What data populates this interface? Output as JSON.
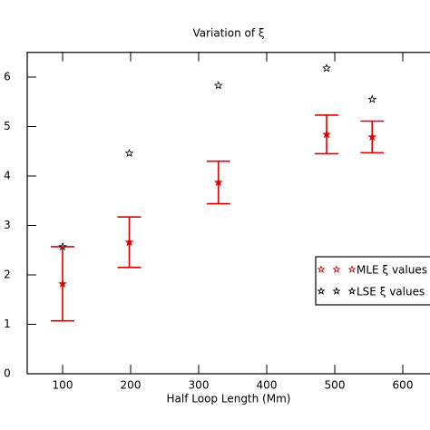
{
  "chart_data": {
    "type": "errorbar-scatter",
    "title": "Variation of ξ",
    "x_label": "Half Loop Length (Mm)",
    "xlim": [
      48,
      640
    ],
    "ylim": [
      0,
      6.5
    ],
    "xticks": [
      100,
      200,
      300,
      400,
      500,
      600
    ],
    "yticks": [
      0,
      1,
      2,
      3,
      4,
      5,
      6
    ],
    "series": [
      {
        "name": "MLE ξ values",
        "color": "#e00000",
        "x": [
          100,
          198,
          329,
          488,
          555
        ],
        "values": [
          1.82,
          2.66,
          3.87,
          4.84,
          4.79
        ],
        "errors": [
          0.75,
          0.51,
          0.43,
          0.39,
          0.32
        ]
      },
      {
        "name": "LSE ξ values",
        "color": "#000000",
        "x": [
          100,
          198,
          329,
          488,
          555
        ],
        "values": [
          2.57,
          4.46,
          5.83,
          6.18,
          5.55
        ]
      }
    ]
  }
}
